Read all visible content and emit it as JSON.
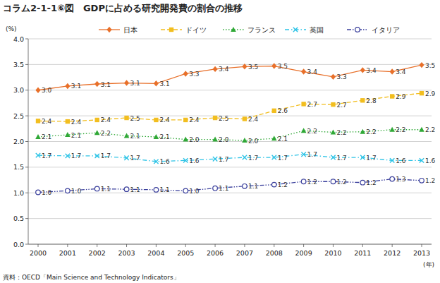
{
  "chart_data": {
    "type": "line",
    "title": "コラム2-1-1⑥図　GDPに占める研究開発費の割合の推移",
    "y_label": "(%)",
    "x_label": "(年)",
    "source": "資料：OECD「Main Science and Technology Indicators」",
    "categories": [
      "2000",
      "2001",
      "2002",
      "2003",
      "2004",
      "2005",
      "2006",
      "2007",
      "2008",
      "2009",
      "2010",
      "2011",
      "2012",
      "2013"
    ],
    "series": [
      {
        "name": "日本",
        "color": "#e8702a",
        "marker": "diamond",
        "line_style": "solid",
        "values": [
          3.0,
          3.08,
          3.12,
          3.14,
          3.13,
          3.32,
          3.41,
          3.46,
          3.47,
          3.36,
          3.26,
          3.39,
          3.36,
          3.49
        ],
        "value_labels": [
          "3.0",
          "3.1",
          "3.1",
          "3.1",
          "3.1",
          "3.3",
          "3.4",
          "3.5",
          "3.5",
          "3.4",
          "3.3",
          "3.4",
          "3.4",
          "3.5"
        ]
      },
      {
        "name": "ドイツ",
        "color": "#f2be1f",
        "marker": "square",
        "line_style": "dashed",
        "values": [
          2.4,
          2.39,
          2.42,
          2.46,
          2.42,
          2.42,
          2.46,
          2.44,
          2.6,
          2.73,
          2.72,
          2.8,
          2.88,
          2.94
        ],
        "value_labels": [
          "2.4",
          "2.4",
          "2.4",
          "2.5",
          "2.4",
          "2.4",
          "2.5",
          "2.4",
          "2.6",
          "2.7",
          "2.7",
          "2.8",
          "2.9",
          "2.9"
        ]
      },
      {
        "name": "フランス",
        "color": "#2fa836",
        "marker": "triangle",
        "line_style": "dotted",
        "values": [
          2.09,
          2.13,
          2.17,
          2.11,
          2.09,
          2.04,
          2.04,
          2.02,
          2.06,
          2.21,
          2.18,
          2.19,
          2.23,
          2.23
        ],
        "value_labels": [
          "2.1",
          "2.1",
          "2.2",
          "2.1",
          "2.1",
          "2.0",
          "2.0",
          "2.0",
          "2.1",
          "2.2",
          "2.2",
          "2.2",
          "2.2",
          "2.2"
        ]
      },
      {
        "name": "英国",
        "color": "#2cc3e6",
        "marker": "x",
        "line_style": "dashdot",
        "values": [
          1.73,
          1.72,
          1.72,
          1.68,
          1.61,
          1.63,
          1.66,
          1.69,
          1.69,
          1.75,
          1.69,
          1.69,
          1.63,
          1.63
        ],
        "value_labels": [
          "1.7",
          "1.7",
          "1.7",
          "1.7",
          "1.6",
          "1.6",
          "1.7",
          "1.7",
          "1.7",
          "1.7",
          "1.7",
          "1.7",
          "1.6",
          "1.6"
        ]
      },
      {
        "name": "イタリア",
        "color": "#3a3f9c",
        "marker": "circle-open",
        "line_style": "dashdotdot",
        "values": [
          1.01,
          1.04,
          1.08,
          1.07,
          1.06,
          1.04,
          1.09,
          1.13,
          1.16,
          1.22,
          1.22,
          1.2,
          1.27,
          1.24
        ],
        "value_labels": [
          "1.0",
          "1.0",
          "1.1",
          "1.1",
          "1.1",
          "1.0",
          "1.1",
          "1.1",
          "1.2",
          "1.2",
          "1.2",
          "1.2",
          "1.3",
          "1.2"
        ]
      }
    ],
    "ylim": [
      0,
      4
    ],
    "yticks": [
      {
        "value": 0,
        "label": "0.0"
      },
      0.5,
      {
        "value": 1,
        "label": "1.0"
      },
      1.5,
      {
        "value": 2,
        "label": "2.0"
      },
      2.5,
      {
        "value": 3,
        "label": "3.0"
      },
      3.5,
      {
        "value": 4,
        "label": "4.0"
      }
    ],
    "grid": true,
    "legend": "top",
    "data_labels": true
  }
}
